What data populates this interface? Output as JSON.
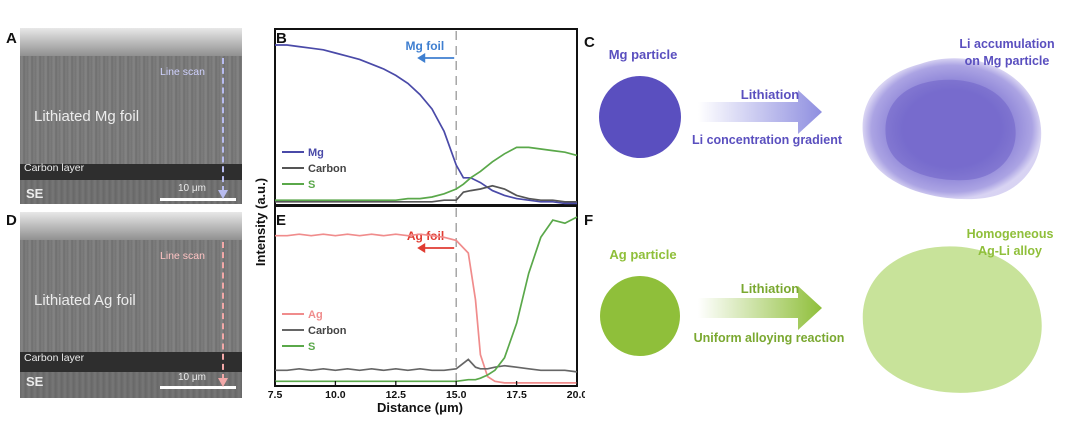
{
  "panels": {
    "A": "A",
    "B": "B",
    "C": "C",
    "D": "D",
    "E": "E",
    "F": "F"
  },
  "sem_a": {
    "label": "Lithiated Mg foil",
    "carbon": "Carbon layer",
    "mode": "SE",
    "scale": "10 μm",
    "scan": "Line scan",
    "scan_color": "#b8bcf0"
  },
  "sem_d": {
    "label": "Lithiated Ag foil",
    "carbon": "Carbon layer",
    "mode": "SE",
    "scale": "10 μm",
    "scan": "Line scan",
    "scan_color": "#f2a8a8"
  },
  "chart_data": [
    {
      "type": "line",
      "panel": "B",
      "annotation": "Mg foil",
      "annotation_color": "#3f7fd0",
      "x": [
        7.5,
        8,
        8.5,
        9,
        9.5,
        10,
        10.5,
        11,
        11.5,
        12,
        12.5,
        13,
        13.5,
        14,
        14.5,
        15,
        15.3,
        15.6,
        16,
        16.5,
        17,
        17.5,
        18,
        18.5,
        19,
        19.5,
        20
      ],
      "series": [
        {
          "name": "Mg",
          "color": "#4a4aa8",
          "values": [
            100,
            100,
            99,
            98,
            97,
            95,
            93,
            91,
            88,
            85,
            81,
            76,
            69,
            60,
            46,
            25,
            17,
            17,
            14,
            9,
            6,
            4,
            3,
            2,
            2,
            1,
            1
          ]
        },
        {
          "name": "Carbon",
          "color": "#555555",
          "values": [
            2,
            2,
            2,
            2,
            2,
            2,
            2,
            2,
            2,
            2,
            2,
            2,
            2,
            2,
            3,
            3,
            8,
            9,
            10,
            12,
            10,
            6,
            4,
            3,
            3,
            2,
            2
          ]
        },
        {
          "name": "S",
          "color": "#5aa84a",
          "values": [
            3,
            3,
            3,
            3,
            3,
            3,
            3,
            3,
            3,
            3,
            3,
            4,
            4,
            5,
            7,
            10,
            13,
            17,
            21,
            27,
            32,
            36,
            36,
            35,
            34,
            33,
            31
          ]
        }
      ],
      "xlim": [
        7.5,
        20
      ],
      "ylim": [
        0,
        110
      ],
      "divider": 15,
      "arrow_to": 13.8
    },
    {
      "type": "line",
      "panel": "E",
      "annotation": "Ag foil",
      "annotation_color": "#e03c32",
      "x": [
        7.5,
        8,
        8.5,
        9,
        9.5,
        10,
        10.5,
        11,
        11.5,
        12,
        12.5,
        13,
        13.5,
        14,
        14.5,
        15,
        15.5,
        15.8,
        16,
        16.3,
        16.6,
        17,
        17.5,
        18,
        18.5,
        19,
        19.5,
        20
      ],
      "series": [
        {
          "name": "Ag",
          "color": "#f08c8c",
          "values": [
            96,
            96,
            97,
            96,
            97,
            96,
            97,
            96,
            97,
            96,
            97,
            96,
            97,
            96,
            95,
            93,
            85,
            55,
            20,
            6,
            3,
            2,
            2,
            2,
            2,
            2,
            2,
            2
          ]
        },
        {
          "name": "Carbon",
          "color": "#666666",
          "values": [
            10,
            10,
            11,
            10,
            11,
            10,
            11,
            10,
            11,
            10,
            11,
            10,
            11,
            10,
            10,
            11,
            17,
            12,
            11,
            11,
            12,
            13,
            12,
            11,
            10,
            10,
            10,
            9
          ]
        },
        {
          "name": "S",
          "color": "#5aa84a",
          "values": [
            3,
            3,
            3,
            3,
            3,
            3,
            3,
            3,
            3,
            3,
            3,
            3,
            3,
            3,
            3,
            3,
            4,
            4,
            5,
            7,
            10,
            18,
            40,
            72,
            95,
            106,
            104,
            108
          ]
        }
      ],
      "xlim": [
        7.5,
        20
      ],
      "ylim": [
        0,
        115
      ],
      "divider": 15,
      "arrow_to": 13.8
    }
  ],
  "axes": {
    "xlabel": "Distance (μm)",
    "ylabel": "Intensity (a.u.)",
    "xticks": [
      "7.5",
      "10.0",
      "12.5",
      "15.0",
      "17.5",
      "20.0"
    ]
  },
  "panel_c": {
    "particle": "Mg particle",
    "process": "Lithiation",
    "gradient": "Li concentration gradient",
    "result": "Li accumulation\non Mg particle",
    "color": "#5a4fbf",
    "result_color": "#8a7fd6"
  },
  "panel_f": {
    "particle": "Ag particle",
    "process": "Lithiation",
    "reaction": "Uniform alloying reaction",
    "result": "Homogeneous\nAg-Li alloy",
    "color": "#8fbf3a",
    "result_color": "#c8e39a"
  }
}
